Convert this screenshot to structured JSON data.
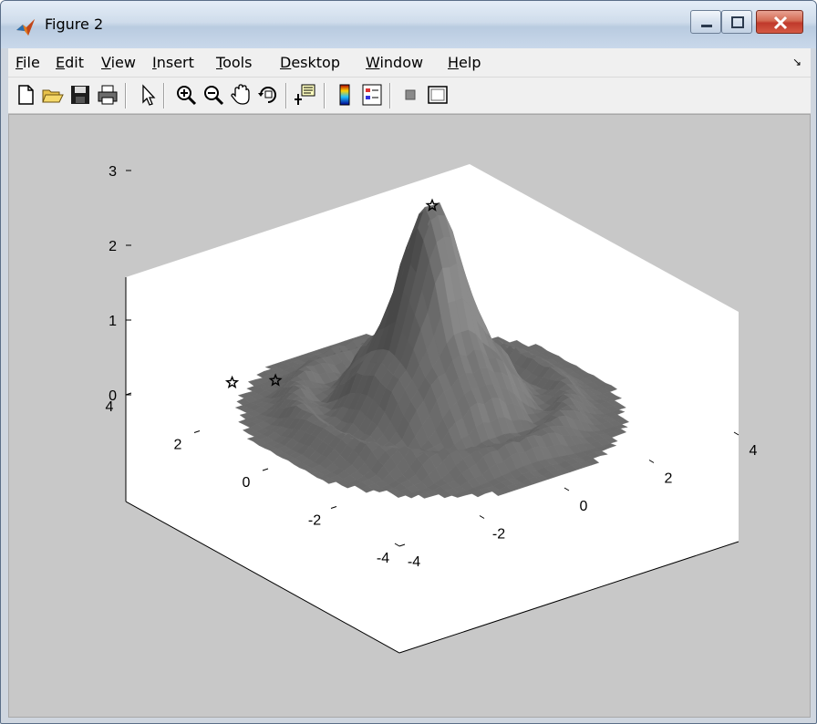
{
  "window": {
    "title": "Figure 2"
  },
  "menu": {
    "file": {
      "u": "F",
      "rest": "ile"
    },
    "edit": {
      "u": "E",
      "rest": "dit"
    },
    "view": {
      "u": "V",
      "rest": "iew"
    },
    "insert": {
      "u": "I",
      "rest": "nsert"
    },
    "tools": {
      "u": "T",
      "rest": "ools"
    },
    "desktop": {
      "u": "D",
      "rest": "esktop"
    },
    "window": {
      "u": "W",
      "rest": "indow"
    },
    "help": {
      "u": "H",
      "rest": "elp"
    }
  },
  "toolbar": {
    "icons": [
      "new-figure-icon",
      "open-file-icon",
      "save-icon",
      "print-icon",
      "edit-plot-arrow-icon",
      "zoom-in-icon",
      "zoom-out-icon",
      "pan-hand-icon",
      "rotate-3d-icon",
      "data-cursor-icon",
      "insert-colorbar-icon",
      "insert-legend-icon",
      "hide-plot-tools-icon",
      "show-plot-tools-icon"
    ]
  },
  "chart_data": {
    "type": "surface",
    "title": "",
    "z_ticks": [
      "0",
      "1",
      "2",
      "3"
    ],
    "x_ticks": [
      "-4",
      "-2",
      "0",
      "2",
      "4"
    ],
    "y_ticks": [
      "-4",
      "-2",
      "0",
      "2",
      "4"
    ],
    "zlim": [
      0,
      3
    ],
    "xlim": [
      -4,
      4
    ],
    "ylim": [
      -4,
      4
    ],
    "peak": {
      "x": 0,
      "y": 0,
      "z": 2.8
    },
    "markers": [
      {
        "x": 0,
        "y": 0,
        "z": 2.8,
        "symbol": "star"
      },
      {
        "x": -2.3,
        "y": 3.0,
        "z": 0.1,
        "symbol": "star"
      },
      {
        "x": -1.6,
        "y": 2.6,
        "z": 0.1,
        "symbol": "star"
      }
    ],
    "surface_color": "#6b6b6b",
    "background": "#ffffff",
    "figure_color": "#c8c8c8"
  }
}
